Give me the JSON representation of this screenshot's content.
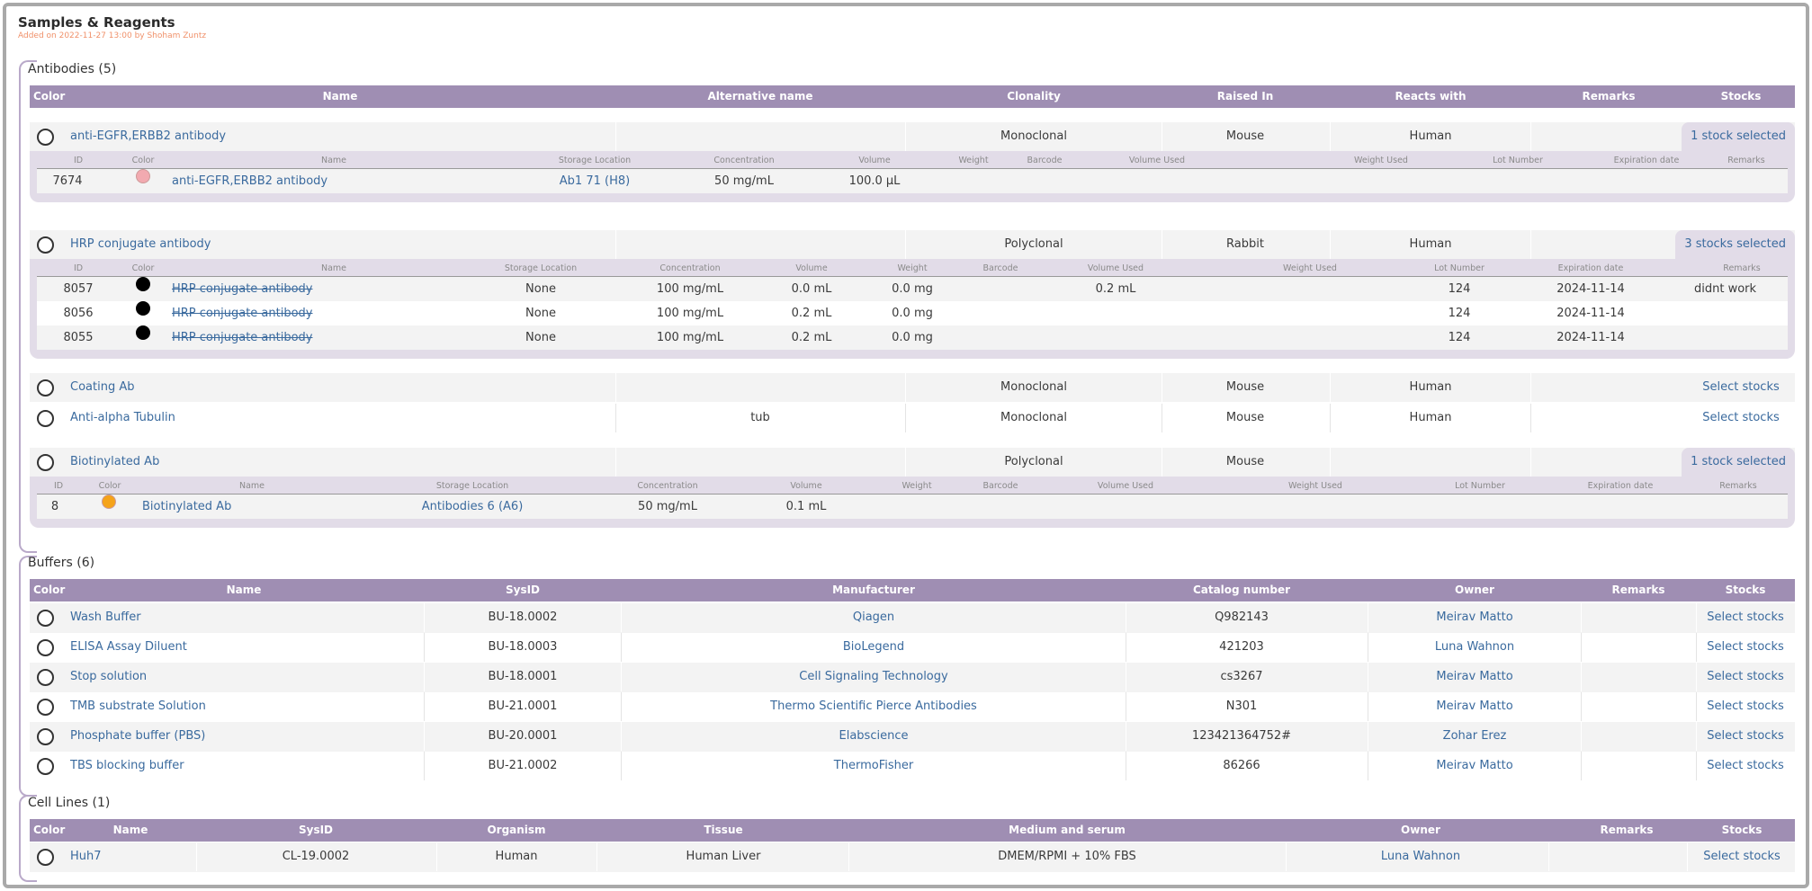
{
  "page": {
    "title": "Samples & Reagents",
    "subtitle": "Added on 2022-11-27 13:00 by Shoham Zuntz"
  },
  "antibodies": {
    "heading": "Antibodies (5)",
    "columns": [
      "Color",
      "Name",
      "Alternative name",
      "Clonality",
      "Raised In",
      "Reacts with",
      "Remarks",
      "Stocks"
    ],
    "stock_columns": [
      "ID",
      "Color",
      "Name",
      "Storage Location",
      "Concentration",
      "Volume",
      "Weight",
      "Barcode",
      "Volume Used",
      "Weight Used",
      "Lot Number",
      "Expiration date",
      "Remarks"
    ],
    "items": [
      {
        "name": "anti-EGFR,ERBB2 antibody",
        "alt": "",
        "clonality": "Monoclonal",
        "raised": "Mouse",
        "reacts": "Human",
        "stocks_label": "1 stock selected",
        "stocks": [
          {
            "id": "7674",
            "color": "#f2aab0",
            "name": "anti-EGFR,ERBB2 antibody",
            "location": "Ab1 71 (H8)",
            "conc": "50 mg/mL",
            "volume": "100.0 µL",
            "weight": "",
            "vol_used": "",
            "lot": "",
            "exp": "",
            "remarks": ""
          }
        ]
      },
      {
        "name": "HRP conjugate antibody",
        "alt": "",
        "clonality": "Polyclonal",
        "raised": "Rabbit",
        "reacts": "Human",
        "stocks_label": "3 stocks selected",
        "stocks": [
          {
            "id": "8057",
            "color": "#000000",
            "name": "HRP conjugate antibody",
            "location": "None",
            "conc": "100 mg/mL",
            "volume": "0.0 mL",
            "weight": "0.0 mg",
            "vol_used": "0.2 mL",
            "lot": "124",
            "exp": "2024-11-14",
            "remarks": "didnt work"
          },
          {
            "id": "8056",
            "color": "#000000",
            "name": "HRP conjugate antibody",
            "location": "None",
            "conc": "100 mg/mL",
            "volume": "0.2 mL",
            "weight": "0.0 mg",
            "vol_used": "",
            "lot": "124",
            "exp": "2024-11-14",
            "remarks": ""
          },
          {
            "id": "8055",
            "color": "#000000",
            "name": "HRP conjugate antibody",
            "location": "None",
            "conc": "100 mg/mL",
            "volume": "0.2 mL",
            "weight": "0.0 mg",
            "vol_used": "",
            "lot": "124",
            "exp": "2024-11-14",
            "remarks": ""
          }
        ]
      },
      {
        "name": "Coating Ab",
        "alt": "",
        "clonality": "Monoclonal",
        "raised": "Mouse",
        "reacts": "Human",
        "stocks_label": "Select stocks"
      },
      {
        "name": "Anti-alpha Tubulin",
        "alt": "tub",
        "clonality": "Monoclonal",
        "raised": "Mouse",
        "reacts": "Human",
        "stocks_label": "Select stocks"
      },
      {
        "name": "Biotinylated Ab",
        "alt": "",
        "clonality": "Polyclonal",
        "raised": "Mouse",
        "reacts": "",
        "stocks_label": "1 stock selected",
        "stocks": [
          {
            "id": "8",
            "color": "#f5a31a",
            "name": "Biotinylated Ab",
            "location": "Antibodies 6 (A6)",
            "conc": "50 mg/mL",
            "volume": "0.1 mL",
            "weight": "",
            "vol_used": "",
            "lot": "",
            "exp": "",
            "remarks": ""
          }
        ]
      }
    ]
  },
  "buffers": {
    "heading": "Buffers (6)",
    "columns": [
      "Color",
      "Name",
      "SysID",
      "Manufacturer",
      "Catalog number",
      "Owner",
      "Remarks",
      "Stocks"
    ],
    "items": [
      {
        "name": "Wash Buffer",
        "sysid": "BU-18.0002",
        "manufacturer": "Qiagen",
        "catalog": "Q982143",
        "owner": "Meirav Matto",
        "stocks_label": "Select stocks"
      },
      {
        "name": "ELISA Assay Diluent",
        "sysid": "BU-18.0003",
        "manufacturer": "BioLegend",
        "catalog": "421203",
        "owner": "Luna Wahnon",
        "stocks_label": "Select stocks"
      },
      {
        "name": "Stop solution",
        "sysid": "BU-18.0001",
        "manufacturer": "Cell Signaling Technology",
        "catalog": "cs3267",
        "owner": "Meirav Matto",
        "stocks_label": "Select stocks"
      },
      {
        "name": "TMB substrate Solution",
        "sysid": "BU-21.0001",
        "manufacturer": "Thermo Scientific Pierce Antibodies",
        "catalog": "N301",
        "owner": "Meirav Matto",
        "stocks_label": "Select stocks"
      },
      {
        "name": "Phosphate buffer (PBS)",
        "sysid": "BU-20.0001",
        "manufacturer": "Elabscience",
        "catalog": "123421364752#",
        "owner": "Zohar Erez",
        "stocks_label": "Select stocks"
      },
      {
        "name": "TBS blocking buffer",
        "sysid": "BU-21.0002",
        "manufacturer": "ThermoFisher",
        "catalog": "86266",
        "owner": "Meirav Matto",
        "stocks_label": "Select stocks"
      }
    ]
  },
  "cell_lines": {
    "heading": "Cell Lines (1)",
    "columns": [
      "Color",
      "Name",
      "SysID",
      "Organism",
      "Tissue",
      "Medium and serum",
      "Owner",
      "Remarks",
      "Stocks"
    ],
    "items": [
      {
        "name": "Huh7",
        "sysid": "CL-19.0002",
        "organism": "Human",
        "tissue": "Human Liver",
        "medium": "DMEM/RPMI + 10% FBS",
        "owner": "Luna Wahnon",
        "stocks_label": "Select stocks"
      }
    ]
  }
}
